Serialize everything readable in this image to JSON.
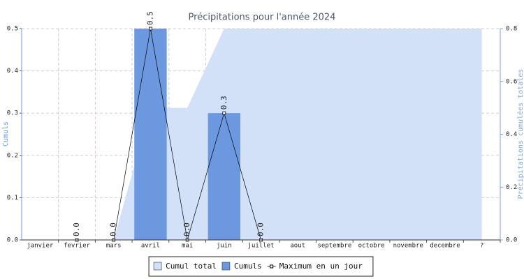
{
  "chart_data": {
    "type": "combo",
    "title": "Précipitations pour l'année 2024",
    "y_label": "Cumuls",
    "y2_label": "Précipitations cumulées totales",
    "categories": [
      "janvier",
      "fevrier",
      "mars",
      "avril",
      "mai",
      "juin",
      "juillet",
      "aout",
      "septembre",
      "octobre",
      "novembre",
      "decembre",
      "?"
    ],
    "ylim": [
      0,
      0.5
    ],
    "yticks": [
      {
        "value": 0,
        "label": "0.0"
      },
      0.1,
      0.2,
      0.3,
      0.4,
      0.5
    ],
    "y2lim": [
      0,
      0.8
    ],
    "y2ticks": [
      {
        "value": 0,
        "label": "0.0"
      },
      0.2,
      0.4,
      0.6,
      0.8
    ],
    "grid": true,
    "legend": "bottom",
    "series": [
      {
        "name": "Cumul total",
        "type": "area",
        "axis": "y2",
        "color": "#d2e0f8",
        "values": [
          null,
          null,
          0,
          0.5,
          0.5,
          0.8,
          0.8,
          0.8,
          0.8,
          0.8,
          0.8,
          0.8,
          0.8
        ]
      },
      {
        "name": "Cumuls",
        "type": "bar",
        "color": "#6b98de",
        "values": [
          null,
          0,
          0,
          0.5,
          0,
          0.3,
          0,
          null,
          null,
          null,
          null,
          null,
          null
        ]
      },
      {
        "name": "Maximum en un jour",
        "type": "line",
        "color": "#000000",
        "values": [
          null,
          0,
          0,
          0.5,
          0,
          0.3,
          0,
          null,
          null,
          null,
          null,
          null,
          null
        ],
        "value_labels": [
          null,
          "0.0",
          "0.0",
          "0.5",
          "0.0",
          "0.3",
          "0.0",
          null,
          null,
          null,
          null,
          null,
          null
        ]
      }
    ]
  }
}
